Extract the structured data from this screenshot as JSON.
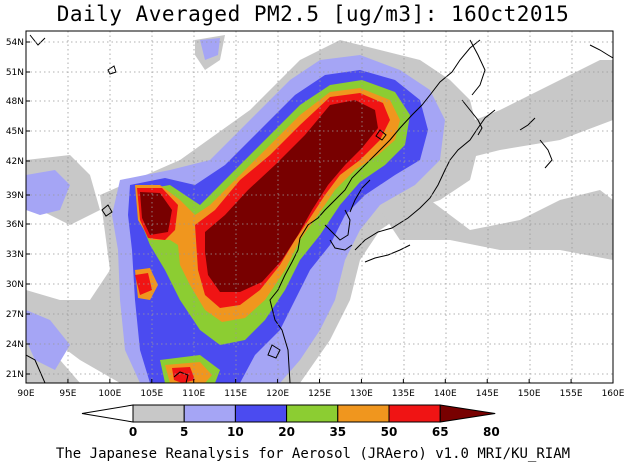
{
  "title": "Daily Averaged PM2.5 [ug/m3]: 16Oct2015",
  "footer": "The Japanese Reanalysis for Aerosol (JRAero) v1.0 MRI/KU_RIAM",
  "lat_labels": [
    "54N",
    "51N",
    "48N",
    "45N",
    "42N",
    "39N",
    "36N",
    "33N",
    "30N",
    "27N",
    "24N",
    "21N"
  ],
  "lon_labels": [
    "90E",
    "95E",
    "100E",
    "105E",
    "110E",
    "115E",
    "120E",
    "125E",
    "130E",
    "135E",
    "140E",
    "145E",
    "150E",
    "155E",
    "160E"
  ],
  "colorbar": {
    "tick_labels": [
      "0",
      "5",
      "10",
      "20",
      "35",
      "50",
      "65",
      "80"
    ],
    "colors": [
      "#ffffff",
      "#c8c8c8",
      "#a5a5f5",
      "#4b4bf0",
      "#8ccd32",
      "#f0961e",
      "#f01414",
      "#780000"
    ]
  },
  "colors": {
    "land_coast": "#000000",
    "grid": "#999999"
  }
}
